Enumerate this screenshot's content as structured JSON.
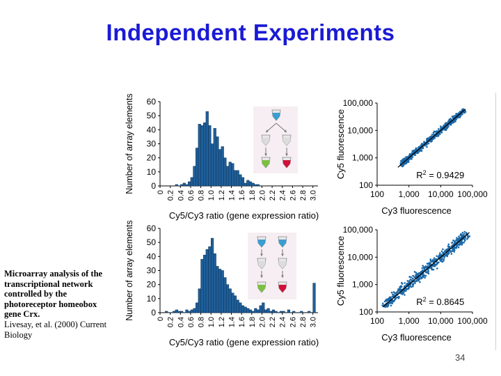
{
  "slide": {
    "title": "Independent Experiments",
    "caption_bold": "Microarray analysis of the transcriptional network controlled by the photoreceptor homeobox gene Crx.",
    "caption_plain": "Livesay, et al. (2000) Current Biology",
    "page_number": "34"
  },
  "colors": {
    "title": "#1a1ad6",
    "bar": "#1f5f9a",
    "point": "#1a68a8",
    "fit_line": "#000000",
    "tube_top": "#3a9ed0",
    "tube_green": "#7bc043",
    "tube_red": "#d0103a"
  },
  "chart_data": [
    {
      "type": "bar",
      "xlabel": "Cy5/Cy3 ratio (gene expression ratio)",
      "ylabel": "Number of array elements",
      "ylim": [
        0,
        60
      ],
      "yticks": [
        "0",
        "10",
        "20",
        "30",
        "40",
        "50",
        "60"
      ],
      "xlim": [
        0,
        3.1
      ],
      "xticks": [
        "0",
        "0.2",
        "0.4",
        "0.6",
        "0.8",
        "1.0",
        "1.2",
        "1.4",
        "1.6",
        "1.8",
        "2.0",
        "2.2",
        "2.4",
        "2.6",
        "2.8",
        "3.0"
      ],
      "bin_width": 0.05,
      "bin_start": 0.3,
      "values": [
        1,
        0,
        1,
        2,
        1,
        3,
        6,
        14,
        27,
        44,
        43,
        45,
        53,
        43,
        30,
        41,
        35,
        26,
        28,
        20,
        14,
        17,
        16,
        11,
        11,
        8,
        6,
        2,
        4,
        3,
        2,
        1,
        1
      ]
    },
    {
      "type": "scatter",
      "xlabel": "Cy3 fluorescence",
      "ylabel": "Cy5 fluorescence",
      "x_scale": "log",
      "y_scale": "log",
      "xlim": [
        100,
        100000
      ],
      "ylim": [
        100,
        100000
      ],
      "xticks": [
        "100",
        "1,000",
        "10,000",
        "100,000"
      ],
      "yticks": [
        "100",
        "1,000",
        "10,000",
        "100,000"
      ],
      "annotation_prefix": "R",
      "annotation_sup": "2",
      "annotation_value": " = 0.9429",
      "fit": [
        [
          450,
          450
        ],
        [
          60000,
          60000
        ]
      ]
    },
    {
      "type": "bar",
      "xlabel": "Cy5/Cy3 ratio (gene expression ratio)",
      "ylabel": "Number of array elements",
      "ylim": [
        0,
        60
      ],
      "yticks": [
        "0",
        "10",
        "20",
        "30",
        "40",
        "50",
        "60"
      ],
      "xlim": [
        0,
        3.1
      ],
      "xticks": [
        "0",
        "0.2",
        "0.4",
        "0.6",
        "0.8",
        "1.0",
        "1.2",
        "1.4",
        "1.6",
        "1.8",
        "2.0",
        "2.2",
        "2.4",
        "2.6",
        "2.8",
        "3.0"
      ],
      "bin_width": 0.05,
      "bin_start": 0.1,
      "values": [
        1,
        0,
        0,
        1,
        2,
        1,
        1,
        0,
        2,
        1,
        2,
        3,
        7,
        17,
        38,
        41,
        45,
        47,
        53,
        42,
        33,
        31,
        30,
        25,
        20,
        17,
        14,
        12,
        9,
        7,
        5,
        4,
        3,
        2,
        1,
        3,
        2,
        5,
        7,
        2,
        3,
        1,
        2,
        1,
        0,
        1,
        1,
        0,
        2,
        0,
        1,
        0,
        0,
        1,
        0,
        0,
        1,
        0,
        21
      ],
      "values_note_last_bin": "3.0"
    },
    {
      "type": "scatter",
      "xlabel": "Cy3 fluorescence",
      "ylabel": "Cy5 fluorescence",
      "x_scale": "log",
      "y_scale": "log",
      "xlim": [
        100,
        100000
      ],
      "ylim": [
        100,
        100000
      ],
      "xticks": [
        "100",
        "1,000",
        "10,000",
        "100,000"
      ],
      "yticks": [
        "100",
        "1,000",
        "10,000",
        "100,000"
      ],
      "annotation_prefix": "R",
      "annotation_sup": "2",
      "annotation_value": " = 0.8645",
      "fit": [
        [
          150,
          150
        ],
        [
          80000,
          80000
        ]
      ]
    }
  ]
}
